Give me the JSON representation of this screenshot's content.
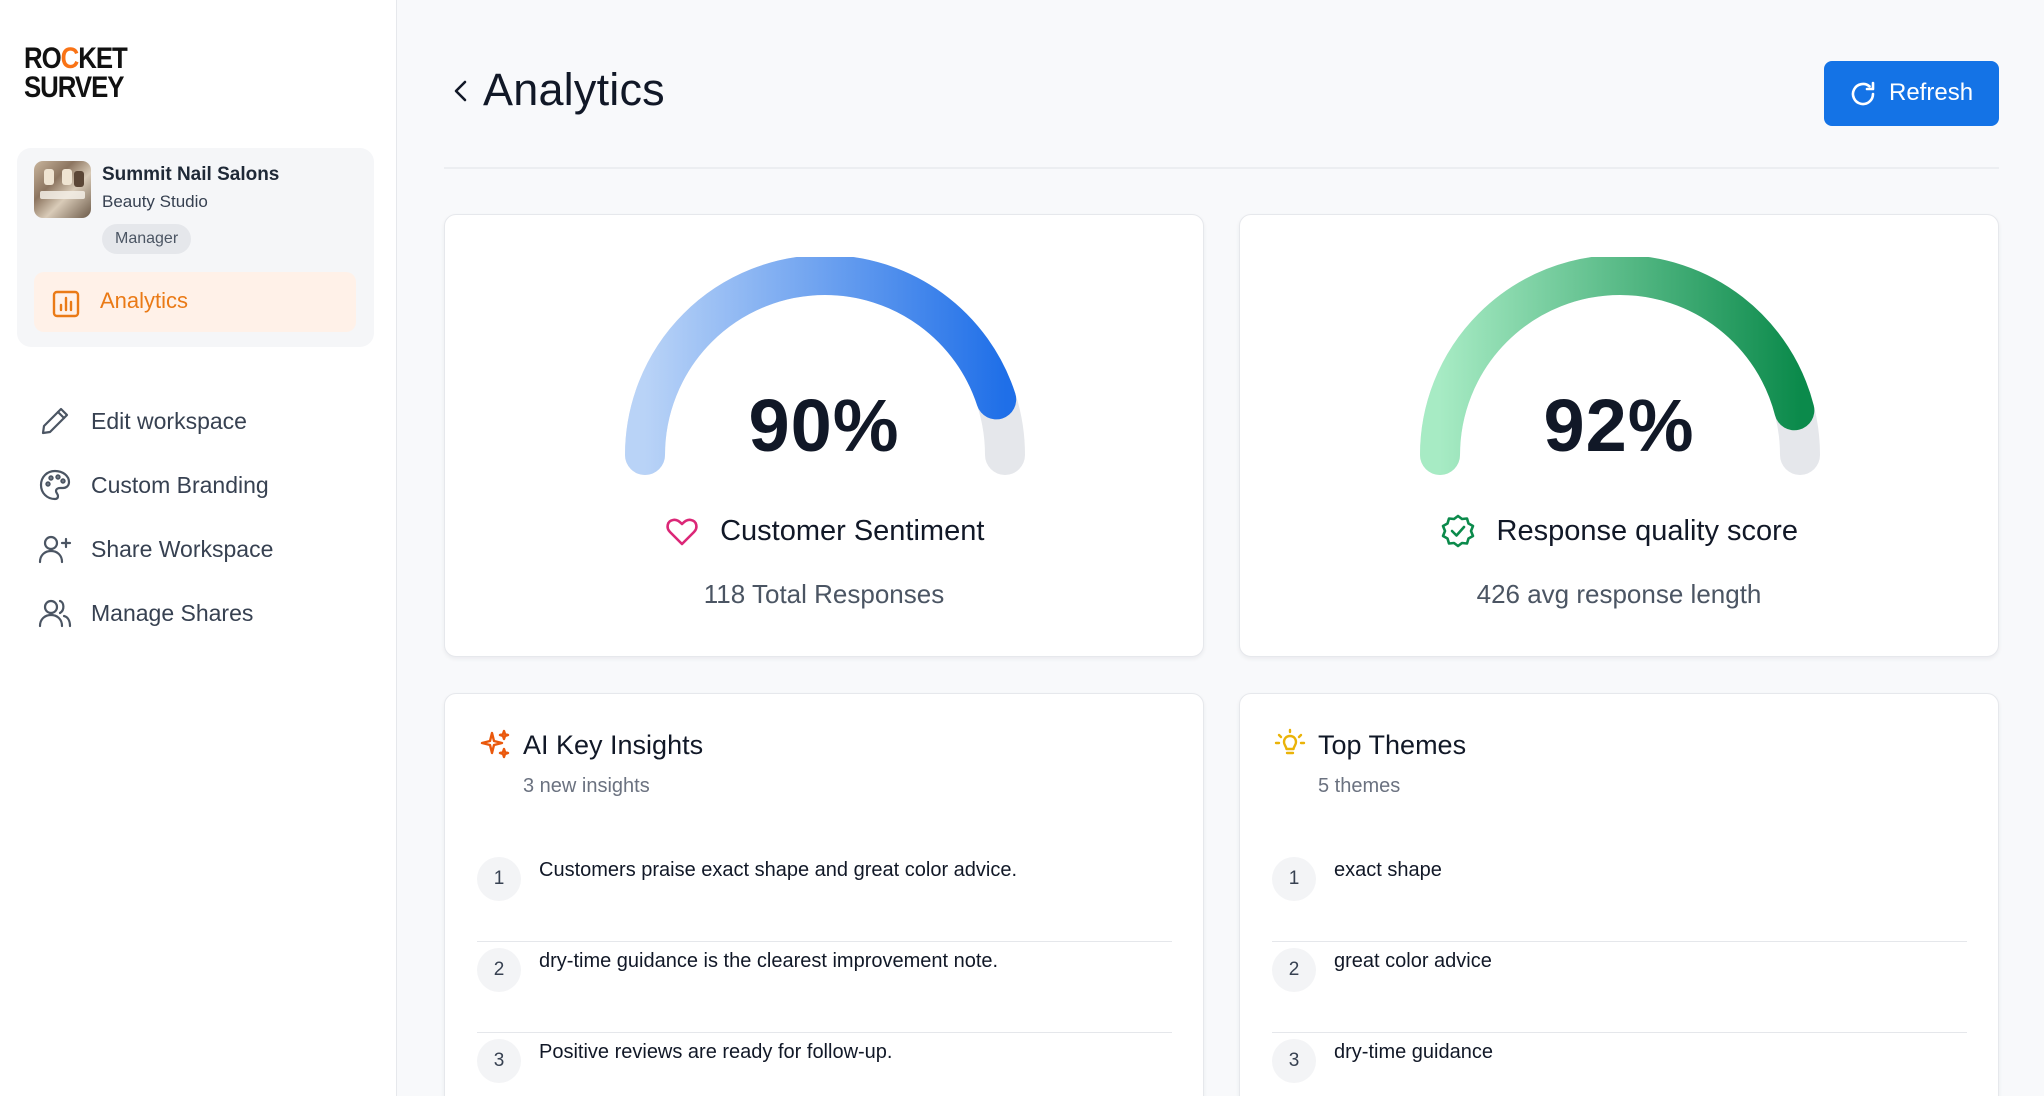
{
  "brand": {
    "logo_line1": [
      "RO",
      "C",
      "KET"
    ],
    "logo_line2": "SURVEY",
    "accent_color": "#f97316"
  },
  "workspace": {
    "name": "Summit Nail Salons",
    "type": "Beauty Studio",
    "role": "Manager",
    "active_nav": {
      "label": "Analytics",
      "icon": "bar-chart-icon"
    }
  },
  "nav": [
    {
      "label": "Edit workspace",
      "icon": "pencil-icon"
    },
    {
      "label": "Custom Branding",
      "icon": "palette-icon"
    },
    {
      "label": "Share Workspace",
      "icon": "user-plus-icon"
    },
    {
      "label": "Manage Shares",
      "icon": "users-icon"
    }
  ],
  "header": {
    "title": "Analytics",
    "refresh_label": "Refresh",
    "primary_color": "#1473e6"
  },
  "gauges": [
    {
      "value": "90%",
      "percent": 90,
      "title": "Customer Sentiment",
      "subtitle": "118 Total Responses",
      "icon": "heart-icon",
      "colors": [
        "#b9d3f7",
        "#1f6fe8"
      ]
    },
    {
      "value": "92%",
      "percent": 92,
      "title": "Response quality score",
      "subtitle": "426 avg response length",
      "icon": "badge-check-icon",
      "colors": [
        "#a7ebc4",
        "#0b8a4b"
      ]
    }
  ],
  "insights": {
    "title": "AI Key Insights",
    "subtitle": "3 new insights",
    "icon": "sparkles-icon",
    "items": [
      {
        "num": "1",
        "text": "Customers praise exact shape and great color advice."
      },
      {
        "num": "2",
        "text": "dry-time guidance is the clearest improvement note."
      },
      {
        "num": "3",
        "text": "Positive reviews are ready for follow-up."
      }
    ]
  },
  "themes": {
    "title": "Top Themes",
    "subtitle": "5 themes",
    "icon": "lightbulb-icon",
    "items": [
      {
        "num": "1",
        "text": "exact shape"
      },
      {
        "num": "2",
        "text": "great color advice"
      },
      {
        "num": "3",
        "text": "dry-time guidance"
      }
    ]
  }
}
